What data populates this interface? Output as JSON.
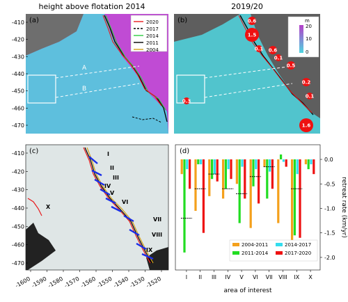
{
  "panel_a": {
    "title": "height above flotation 2014",
    "label": "(a)",
    "yticks": [
      "-410",
      "-420",
      "-430",
      "-440",
      "-450",
      "-460",
      "-470"
    ],
    "region_labels": [
      "A",
      "B"
    ],
    "legend": [
      {
        "label": "2020",
        "color": "#e8191c",
        "dash": false
      },
      {
        "label": "2017",
        "color": "#000000",
        "dash": true
      },
      {
        "label": "2014",
        "color": "#2ecc40",
        "dash": false
      },
      {
        "label": "2011",
        "color": "#000000",
        "dash": false
      },
      {
        "label": "2004",
        "color": "#d4a017",
        "dash": false
      }
    ]
  },
  "panel_b": {
    "title": "2019/20",
    "label": "(b)",
    "colorbar": {
      "unit": "m",
      "ticks": [
        "20",
        "10",
        "0"
      ]
    },
    "speed_labels": [
      "0.6",
      "1.5",
      "0.1",
      "0.6",
      "0.1",
      "0.5",
      "0.2",
      "0.1",
      "0.3",
      "1.6"
    ]
  },
  "panel_c": {
    "label": "(c)",
    "yticks": [
      "-410",
      "-420",
      "-430",
      "-440",
      "-450",
      "-460",
      "-470"
    ],
    "xticks": [
      "-1600",
      "-1590",
      "-1580",
      "-1570",
      "-1560",
      "-1550",
      "-1540",
      "-1530",
      "-1520"
    ],
    "areas": [
      "I",
      "II",
      "III",
      "IV",
      "V",
      "VI",
      "VII",
      "VIII",
      "IX",
      "X"
    ]
  },
  "panel_d": {
    "label": "(d)",
    "ylabel": "retreat rate (km/yr)",
    "xlabel": "area of interest",
    "yticks": [
      "0.0",
      "-0.5",
      "-1.0",
      "-1.5",
      "-2.0"
    ]
  },
  "colors": {
    "s1": "#f4a01c",
    "s2": "#22dd22",
    "s3": "#33ddee",
    "s4": "#ee1111"
  },
  "chart_data": {
    "type": "bar",
    "categories": [
      "I",
      "II",
      "III",
      "IV",
      "V",
      "VI",
      "VII",
      "VIII",
      "IX",
      "X"
    ],
    "ylim": [
      -2.2,
      0.1
    ],
    "series": [
      {
        "name": "2004-2011",
        "values": [
          -0.3,
          -1.05,
          -0.75,
          -0.8,
          -0.5,
          -1.4,
          -0.15,
          -1.3,
          -1.65,
          -0.1
        ]
      },
      {
        "name": "2011-2014",
        "values": [
          -1.9,
          -0.1,
          -0.4,
          -0.6,
          -1.3,
          -0.55,
          -0.8,
          0.1,
          -1.55,
          -0.2
        ]
      },
      {
        "name": "2014-2017",
        "values": [
          -0.2,
          -0.1,
          -0.3,
          -0.2,
          -0.15,
          -0.2,
          -0.25,
          -0.05,
          -0.3,
          -0.1
        ]
      },
      {
        "name": "2017-2020",
        "values": [
          -0.6,
          -1.5,
          -0.45,
          -0.4,
          -0.8,
          -0.9,
          -0.6,
          -0.15,
          -1.6,
          -0.3
        ]
      }
    ],
    "mean_markers": [
      -1.2,
      -0.6,
      -0.3,
      -0.6,
      -0.7,
      -0.35,
      -0.15,
      null,
      -0.6,
      null
    ]
  }
}
